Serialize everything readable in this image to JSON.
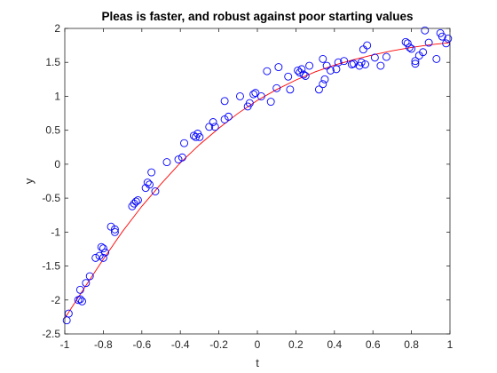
{
  "chart_data": {
    "type": "scatter",
    "title": "Pleas is faster, and robust against poor starting values",
    "xlabel": "t",
    "ylabel": "y",
    "xlim": [
      -1,
      1
    ],
    "ylim": [
      -2.5,
      2
    ],
    "xticks": [
      -1,
      -0.8,
      -0.6,
      -0.4,
      -0.2,
      0,
      0.2,
      0.4,
      0.6,
      0.8,
      1
    ],
    "xtick_labels": [
      "-1",
      "-0.8",
      "-0.6",
      "-0.4",
      "-0.2",
      "0",
      "0.2",
      "0.4",
      "0.6",
      "0.8",
      "1"
    ],
    "yticks": [
      -2.5,
      -2,
      -1.5,
      -1,
      -0.5,
      0,
      0.5,
      1,
      1.5,
      2
    ],
    "ytick_labels": [
      "-2.5",
      "-2",
      "-1.5",
      "-1",
      "-0.5",
      "0",
      "0.5",
      "1",
      "1.5",
      "2"
    ],
    "grid": false,
    "colors": {
      "markers": "#0000ff",
      "fit": "#ff0000",
      "axes": "#262626"
    },
    "series": [
      {
        "kind": "scatter",
        "marker": "circle",
        "x": [
          -0.99,
          -0.98,
          -0.93,
          -0.92,
          -0.92,
          -0.91,
          -0.89,
          -0.87,
          -0.84,
          -0.82,
          -0.81,
          -0.8,
          -0.8,
          -0.79,
          -0.76,
          -0.74,
          -0.74,
          -0.65,
          -0.64,
          -0.63,
          -0.62,
          -0.58,
          -0.57,
          -0.56,
          -0.55,
          -0.53,
          -0.47,
          -0.41,
          -0.39,
          -0.38,
          -0.33,
          -0.32,
          -0.31,
          -0.3,
          -0.25,
          -0.23,
          -0.22,
          -0.17,
          -0.17,
          -0.15,
          -0.09,
          -0.05,
          -0.04,
          -0.02,
          -0.01,
          0.02,
          0.05,
          0.07,
          0.1,
          0.11,
          0.16,
          0.17,
          0.21,
          0.22,
          0.23,
          0.24,
          0.25,
          0.27,
          0.32,
          0.34,
          0.34,
          0.35,
          0.36,
          0.38,
          0.41,
          0.42,
          0.45,
          0.49,
          0.5,
          0.53,
          0.54,
          0.55,
          0.56,
          0.57,
          0.61,
          0.64,
          0.67,
          0.77,
          0.78,
          0.79,
          0.8,
          0.82,
          0.82,
          0.84,
          0.86,
          0.87,
          0.89,
          0.93,
          0.95,
          0.96,
          0.98,
          0.99
        ],
        "y": [
          -2.3,
          -2.2,
          -2.0,
          -1.85,
          -1.99,
          -2.02,
          -1.75,
          -1.65,
          -1.38,
          -1.35,
          -1.22,
          -1.24,
          -1.38,
          -1.3,
          -0.92,
          -1.0,
          -0.96,
          -0.62,
          -0.58,
          -0.55,
          -0.53,
          -0.35,
          -0.27,
          -0.3,
          -0.12,
          -0.4,
          0.03,
          0.07,
          0.1,
          0.31,
          0.42,
          0.4,
          0.45,
          0.4,
          0.55,
          0.62,
          0.55,
          0.93,
          0.66,
          0.7,
          1.0,
          0.85,
          0.9,
          1.03,
          1.05,
          1.0,
          1.37,
          0.92,
          1.12,
          1.43,
          1.29,
          1.1,
          1.38,
          1.35,
          1.4,
          1.32,
          1.3,
          1.45,
          1.1,
          1.55,
          1.18,
          1.25,
          1.45,
          1.38,
          1.4,
          1.5,
          1.52,
          1.47,
          1.48,
          1.45,
          1.5,
          1.69,
          1.47,
          1.75,
          1.57,
          1.45,
          1.58,
          1.8,
          1.78,
          1.72,
          1.7,
          1.52,
          1.48,
          1.6,
          1.65,
          1.97,
          1.79,
          1.55,
          1.93,
          1.88,
          1.78,
          1.85
        ]
      },
      {
        "kind": "line",
        "x": [
          -1,
          -0.9,
          -0.8,
          -0.7,
          -0.6,
          -0.5,
          -0.4,
          -0.3,
          -0.2,
          -0.1,
          0,
          0.1,
          0.2,
          0.3,
          0.4,
          0.5,
          0.6,
          0.7,
          0.8,
          0.9,
          1
        ],
        "y": [
          -2.27,
          -1.83,
          -1.4,
          -0.99,
          -0.62,
          -0.29,
          0.02,
          0.29,
          0.53,
          0.75,
          0.94,
          1.1,
          1.24,
          1.36,
          1.46,
          1.54,
          1.61,
          1.67,
          1.72,
          1.76,
          1.79
        ]
      }
    ]
  }
}
